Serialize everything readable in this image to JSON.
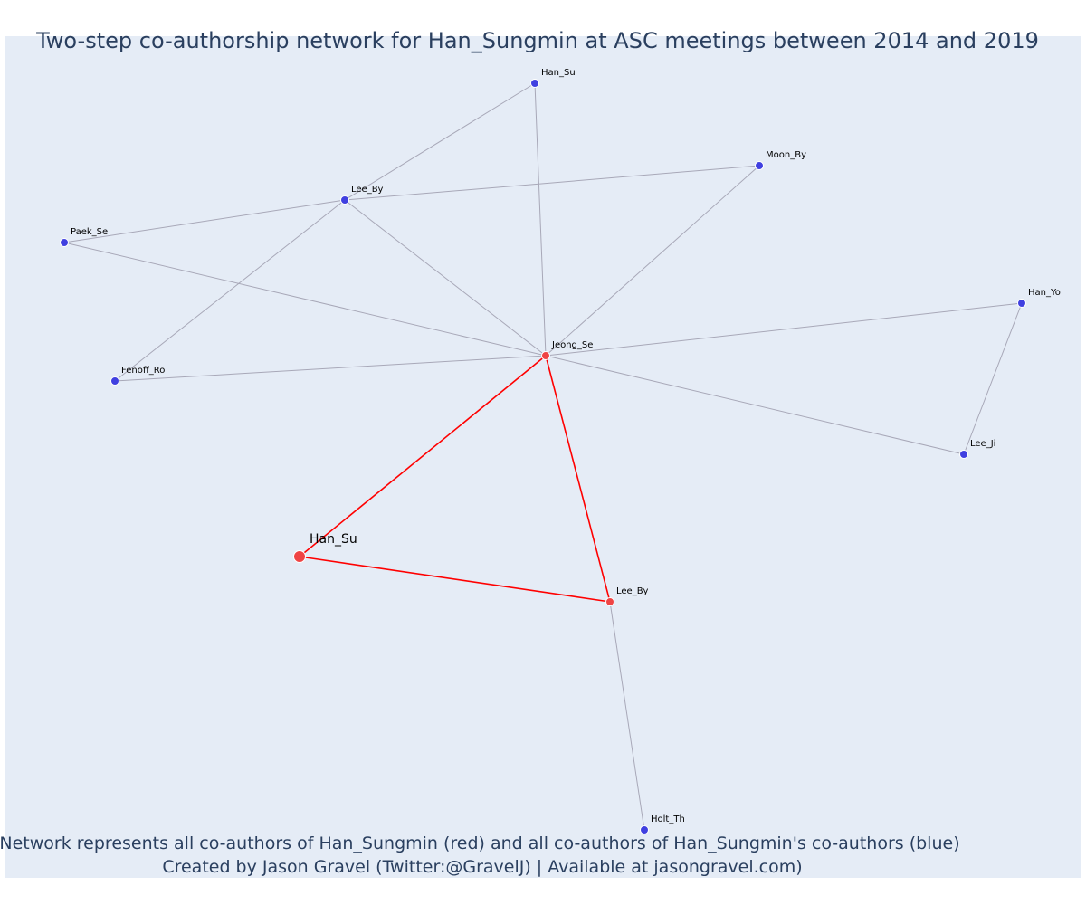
{
  "title": "Two-step co-authorship network for Han_Sungmin at ASC meetings between 2014 and 2019",
  "caption_line1": "Network represents all co-authors of Han_Sungmin (red) and all co-authors of Han_Sungmin's co-authors (blue)",
  "caption_line2": "Created by Jason Gravel (Twitter:@GravelJ) | Available at jasongravel.com)",
  "colors": {
    "background": "#e5ecf6",
    "text": "#2a3f5f",
    "coauthor": "#ef4444",
    "second_step": "#4040e0",
    "edge_red": "#ff0000",
    "edge_grey": "#a8a8b8"
  },
  "network": {
    "nodes": [
      {
        "id": "n_ego",
        "label": "Han_Su",
        "group": "ego"
      },
      {
        "id": "n_jeong",
        "label": "Jeong_Se",
        "group": "coauthor"
      },
      {
        "id": "n_leeby2",
        "label": "Lee_By",
        "group": "coauthor"
      },
      {
        "id": "n_hansu2",
        "label": "Han_Su",
        "group": "second"
      },
      {
        "id": "n_moon",
        "label": "Moon_By",
        "group": "second"
      },
      {
        "id": "n_leeby1",
        "label": "Lee_By",
        "group": "second"
      },
      {
        "id": "n_paek",
        "label": "Paek_Se",
        "group": "second"
      },
      {
        "id": "n_hanyo",
        "label": "Han_Yo",
        "group": "second"
      },
      {
        "id": "n_fenoff",
        "label": "Fenoff_Ro",
        "group": "second"
      },
      {
        "id": "n_leeji",
        "label": "Lee_Ji",
        "group": "second"
      },
      {
        "id": "n_holt",
        "label": "Holt_Th",
        "group": "second"
      }
    ],
    "edges": [
      {
        "source": "n_ego",
        "target": "n_jeong",
        "type": "direct"
      },
      {
        "source": "n_ego",
        "target": "n_leeby2",
        "type": "direct"
      },
      {
        "source": "n_jeong",
        "target": "n_leeby2",
        "type": "direct"
      },
      {
        "source": "n_jeong",
        "target": "n_hansu2",
        "type": "second"
      },
      {
        "source": "n_jeong",
        "target": "n_moon",
        "type": "second"
      },
      {
        "source": "n_jeong",
        "target": "n_leeby1",
        "type": "second"
      },
      {
        "source": "n_jeong",
        "target": "n_paek",
        "type": "second"
      },
      {
        "source": "n_jeong",
        "target": "n_fenoff",
        "type": "second"
      },
      {
        "source": "n_jeong",
        "target": "n_hanyo",
        "type": "second"
      },
      {
        "source": "n_jeong",
        "target": "n_leeji",
        "type": "second"
      },
      {
        "source": "n_leeby1",
        "target": "n_hansu2",
        "type": "second"
      },
      {
        "source": "n_leeby1",
        "target": "n_moon",
        "type": "second"
      },
      {
        "source": "n_leeby1",
        "target": "n_paek",
        "type": "second"
      },
      {
        "source": "n_leeby1",
        "target": "n_fenoff",
        "type": "second"
      },
      {
        "source": "n_hanyo",
        "target": "n_leeji",
        "type": "second"
      },
      {
        "source": "n_leeby2",
        "target": "n_holt",
        "type": "second"
      }
    ]
  }
}
